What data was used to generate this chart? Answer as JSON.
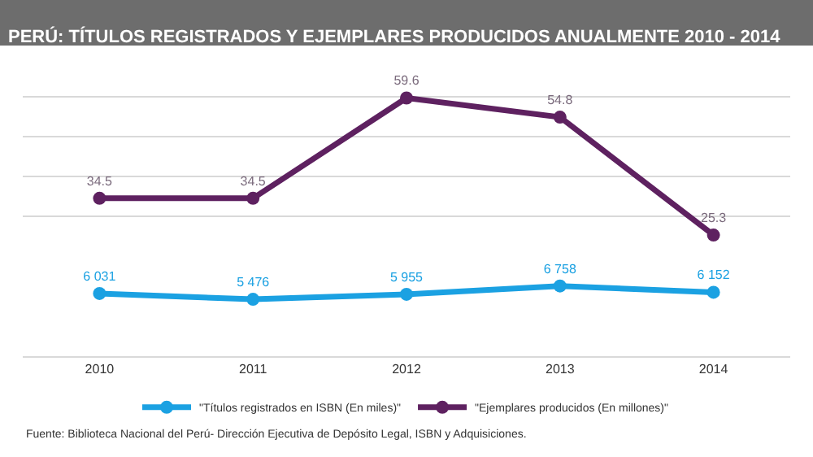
{
  "chart_data": [
    {
      "type": "line",
      "title": "PERÚ: TÍTULOS REGISTRADOS Y EJEMPLARES PRODUCIDOS ANUALMENTE 2010 - 2014",
      "categories": [
        "2010",
        "2011",
        "2012",
        "2013",
        "2014"
      ],
      "series": [
        {
          "name": "\"Ejemplares producidos (En millones)\"",
          "color": "#5e2160",
          "values": [
            34.5,
            34.5,
            59.6,
            54.8,
            25.3
          ]
        }
      ],
      "data_labels": true,
      "grid": "y",
      "legend": "bottom",
      "marker": "circle",
      "line_style": "solid",
      "tick_labels": false
    },
    {
      "type": "line",
      "categories": [
        "2010",
        "2011",
        "2012",
        "2013",
        "2014"
      ],
      "series": [
        {
          "name": "\"Títulos registrados en ISBN (En miles)\"",
          "color": "#1ba1e2",
          "values": [
            6031,
            5476,
            5955,
            6758,
            6152
          ],
          "value_labels": [
            "6 031",
            "5 476",
            "5 955",
            "6 758",
            "6 152"
          ]
        }
      ],
      "legend": "bottom",
      "marker": "circle",
      "line_style": "solid",
      "tick_labels": "x",
      "annotations": [
        "Fuente: Biblioteca Nacional del Perú- Dirección Ejecutiva de Depósito Legal, ISBN y Adquisiciones."
      ]
    }
  ]
}
